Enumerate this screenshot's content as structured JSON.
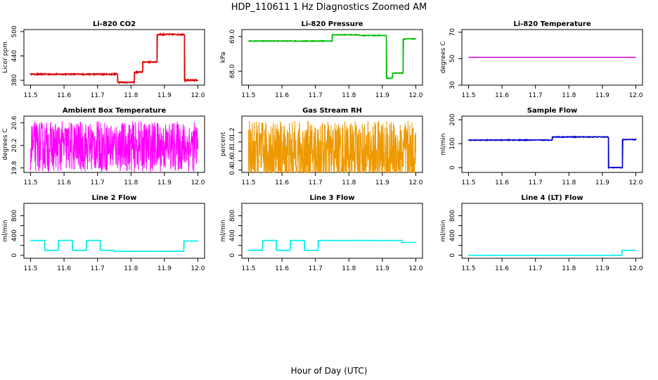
{
  "figure": {
    "title": "HDP_110611  1 Hz Diagnostics Zoomed AM",
    "xlabel": "Hour of Day (UTC)"
  },
  "chart_data": [
    {
      "id": "co2",
      "type": "line",
      "title": "Li-820 CO2",
      "ylabel": "Licor ppm",
      "xlim": [
        11.5,
        12.0
      ],
      "xticks": [
        11.5,
        11.6,
        11.7,
        11.8,
        11.9,
        12.0
      ],
      "xtick_labels": [
        "11.5",
        "11.6",
        "11.7",
        "11.8",
        "11.9",
        "12.0"
      ],
      "ylim": [
        368,
        505
      ],
      "yticks": [
        380,
        440,
        500
      ],
      "ytick_labels": [
        "380",
        "440",
        "500"
      ],
      "color": "#dd0000",
      "series": [
        {
          "x": [
            11.5,
            11.76,
            11.76,
            11.81,
            11.81,
            11.835,
            11.835,
            11.878,
            11.878,
            11.96,
            11.96,
            12.0
          ],
          "y": [
            395,
            395,
            375,
            375,
            400,
            400,
            425,
            425,
            493,
            493,
            380,
            380
          ],
          "noise": 1.5
        }
      ]
    },
    {
      "id": "pressure",
      "type": "line",
      "title": "Li-820 Pressure",
      "ylabel": "kPa",
      "xlim": [
        11.5,
        12.0
      ],
      "xticks": [
        11.5,
        11.6,
        11.7,
        11.8,
        11.9,
        12.0
      ],
      "xtick_labels": [
        "11.5",
        "11.6",
        "11.7",
        "11.8",
        "11.9",
        "12.0"
      ],
      "ylim": [
        67.6,
        69.2
      ],
      "yticks": [
        68.0,
        69.0
      ],
      "ytick_labels": [
        "68.0",
        "69.0"
      ],
      "color": "#00bb00",
      "series": [
        {
          "x": [
            11.5,
            11.75,
            11.75,
            11.83,
            11.83,
            11.912,
            11.912,
            11.93,
            11.93,
            11.962,
            11.962,
            12.0
          ],
          "y": [
            68.87,
            68.87,
            69.05,
            69.05,
            69.03,
            69.03,
            67.8,
            67.8,
            67.95,
            67.95,
            68.93,
            68.93
          ],
          "noise": 0.01
        }
      ]
    },
    {
      "id": "licor-temp",
      "type": "line",
      "title": "Li-820 Temperature",
      "ylabel": "degrees C",
      "xlim": [
        11.5,
        12.0
      ],
      "xticks": [
        11.5,
        11.6,
        11.7,
        11.8,
        11.9,
        12.0
      ],
      "xtick_labels": [
        "11.5",
        "11.6",
        "11.7",
        "11.8",
        "11.9",
        "12.0"
      ],
      "ylim": [
        30,
        72
      ],
      "yticks": [
        30,
        50,
        70
      ],
      "ytick_labels": [
        "30",
        "50",
        "70"
      ],
      "color": "#cc00cc",
      "series": [
        {
          "x": [
            11.5,
            12.0
          ],
          "y": [
            51,
            51
          ],
          "noise": 0
        }
      ]
    },
    {
      "id": "box-temp",
      "type": "line",
      "title": "Ambient Box Temperature",
      "ylabel": "degrees C",
      "xlim": [
        11.5,
        12.0
      ],
      "xticks": [
        11.5,
        11.6,
        11.7,
        11.8,
        11.9,
        12.0
      ],
      "xtick_labels": [
        "11.5",
        "11.6",
        "11.7",
        "11.8",
        "11.9",
        "12.0"
      ],
      "ylim": [
        19.72,
        20.72
      ],
      "yticks": [
        19.8,
        20.2,
        20.6
      ],
      "ytick_labels": [
        "19.8",
        "20.2",
        "20.6"
      ],
      "color": "#ff00ff",
      "series": [
        {
          "x": [
            11.5,
            12.0
          ],
          "y": [
            20.18,
            20.18
          ],
          "noise": 0.45,
          "n": 700
        }
      ]
    },
    {
      "id": "rh",
      "type": "line",
      "title": "Gas Stream RH",
      "ylabel": "percent",
      "xlim": [
        11.5,
        12.0
      ],
      "xticks": [
        11.5,
        11.6,
        11.7,
        11.8,
        11.9,
        12.0
      ],
      "xtick_labels": [
        "11.5",
        "11.6",
        "11.7",
        "11.8",
        "11.9",
        "12.0"
      ],
      "ylim": [
        0.35,
        1.55
      ],
      "yticks": [
        0.4,
        0.6,
        0.8,
        1.0,
        1.2
      ],
      "ytick_labels": [
        "0.4",
        "0.6",
        "0.8",
        "1.0",
        "1.2"
      ],
      "color": "#ee9900",
      "series": [
        {
          "x": [
            11.5,
            12.0
          ],
          "y": [
            0.75,
            0.75
          ],
          "noise": 0.7,
          "n": 900
        }
      ]
    },
    {
      "id": "sample-flow",
      "type": "line",
      "title": "Sample Flow",
      "ylabel": "ml/min",
      "xlim": [
        11.5,
        12.0
      ],
      "xticks": [
        11.5,
        11.6,
        11.7,
        11.8,
        11.9,
        12.0
      ],
      "xtick_labels": [
        "11.5",
        "11.6",
        "11.7",
        "11.8",
        "11.9",
        "12.0"
      ],
      "ylim": [
        -20,
        215
      ],
      "yticks": [
        0,
        100,
        200
      ],
      "ytick_labels": [
        "0",
        "100",
        "200"
      ],
      "color": "#0000cc",
      "series": [
        {
          "x": [
            11.5,
            11.75,
            11.75,
            11.918,
            11.918,
            11.96,
            11.96,
            12.0
          ],
          "y": [
            115,
            115,
            128,
            128,
            0,
            0,
            117,
            117
          ],
          "noise": 1.5
        }
      ]
    },
    {
      "id": "line2-flow",
      "type": "line",
      "title": "Line 2 Flow",
      "ylabel": "ml/min",
      "xlim": [
        11.5,
        12.0
      ],
      "xticks": [
        11.5,
        11.6,
        11.7,
        11.8,
        11.9,
        12.0
      ],
      "xtick_labels": [
        "11.5",
        "11.6",
        "11.7",
        "11.8",
        "11.9",
        "12.0"
      ],
      "ylim": [
        -60,
        1050
      ],
      "yticks": [
        0,
        200,
        400,
        600,
        800
      ],
      "ytick_labels": [
        "0",
        "400",
        "800"
      ],
      "color": "#00eeee",
      "series": [
        {
          "x": [
            11.5,
            11.542,
            11.542,
            11.583,
            11.583,
            11.625,
            11.625,
            11.667,
            11.667,
            11.708,
            11.708,
            11.75,
            11.75,
            11.958,
            11.958,
            12.0
          ],
          "y": [
            300,
            300,
            100,
            100,
            300,
            300,
            100,
            100,
            300,
            300,
            100,
            100,
            80,
            80,
            290,
            290
          ],
          "noise": 2
        }
      ]
    },
    {
      "id": "line3-flow",
      "type": "line",
      "title": "Line 3 Flow",
      "ylabel": "ml/min",
      "xlim": [
        11.5,
        12.0
      ],
      "xticks": [
        11.5,
        11.6,
        11.7,
        11.8,
        11.9,
        12.0
      ],
      "xtick_labels": [
        "11.5",
        "11.6",
        "11.7",
        "11.8",
        "11.9",
        "12.0"
      ],
      "ylim": [
        -60,
        1050
      ],
      "yticks": [
        0,
        200,
        400,
        600,
        800
      ],
      "ytick_labels": [
        "0",
        "400",
        "800"
      ],
      "color": "#00eeee",
      "series": [
        {
          "x": [
            11.5,
            11.542,
            11.542,
            11.583,
            11.583,
            11.625,
            11.625,
            11.667,
            11.667,
            11.708,
            11.708,
            11.958,
            11.958,
            12.0
          ],
          "y": [
            100,
            100,
            300,
            300,
            100,
            100,
            300,
            300,
            100,
            100,
            300,
            300,
            260,
            260
          ],
          "noise": 2
        }
      ]
    },
    {
      "id": "line4-flow",
      "type": "line",
      "title": "Line 4 (LT) Flow",
      "ylabel": "ml/min",
      "xlim": [
        11.5,
        12.0
      ],
      "xticks": [
        11.5,
        11.6,
        11.7,
        11.8,
        11.9,
        12.0
      ],
      "xtick_labels": [
        "11.5",
        "11.6",
        "11.7",
        "11.8",
        "11.9",
        "12.0"
      ],
      "ylim": [
        -60,
        1050
      ],
      "yticks": [
        0,
        200,
        400,
        600,
        800
      ],
      "ytick_labels": [
        "0",
        "400",
        "800"
      ],
      "color": "#00eeee",
      "series": [
        {
          "x": [
            11.5,
            11.958,
            11.958,
            12.0
          ],
          "y": [
            0,
            0,
            100,
            100
          ],
          "noise": 1
        }
      ]
    }
  ]
}
